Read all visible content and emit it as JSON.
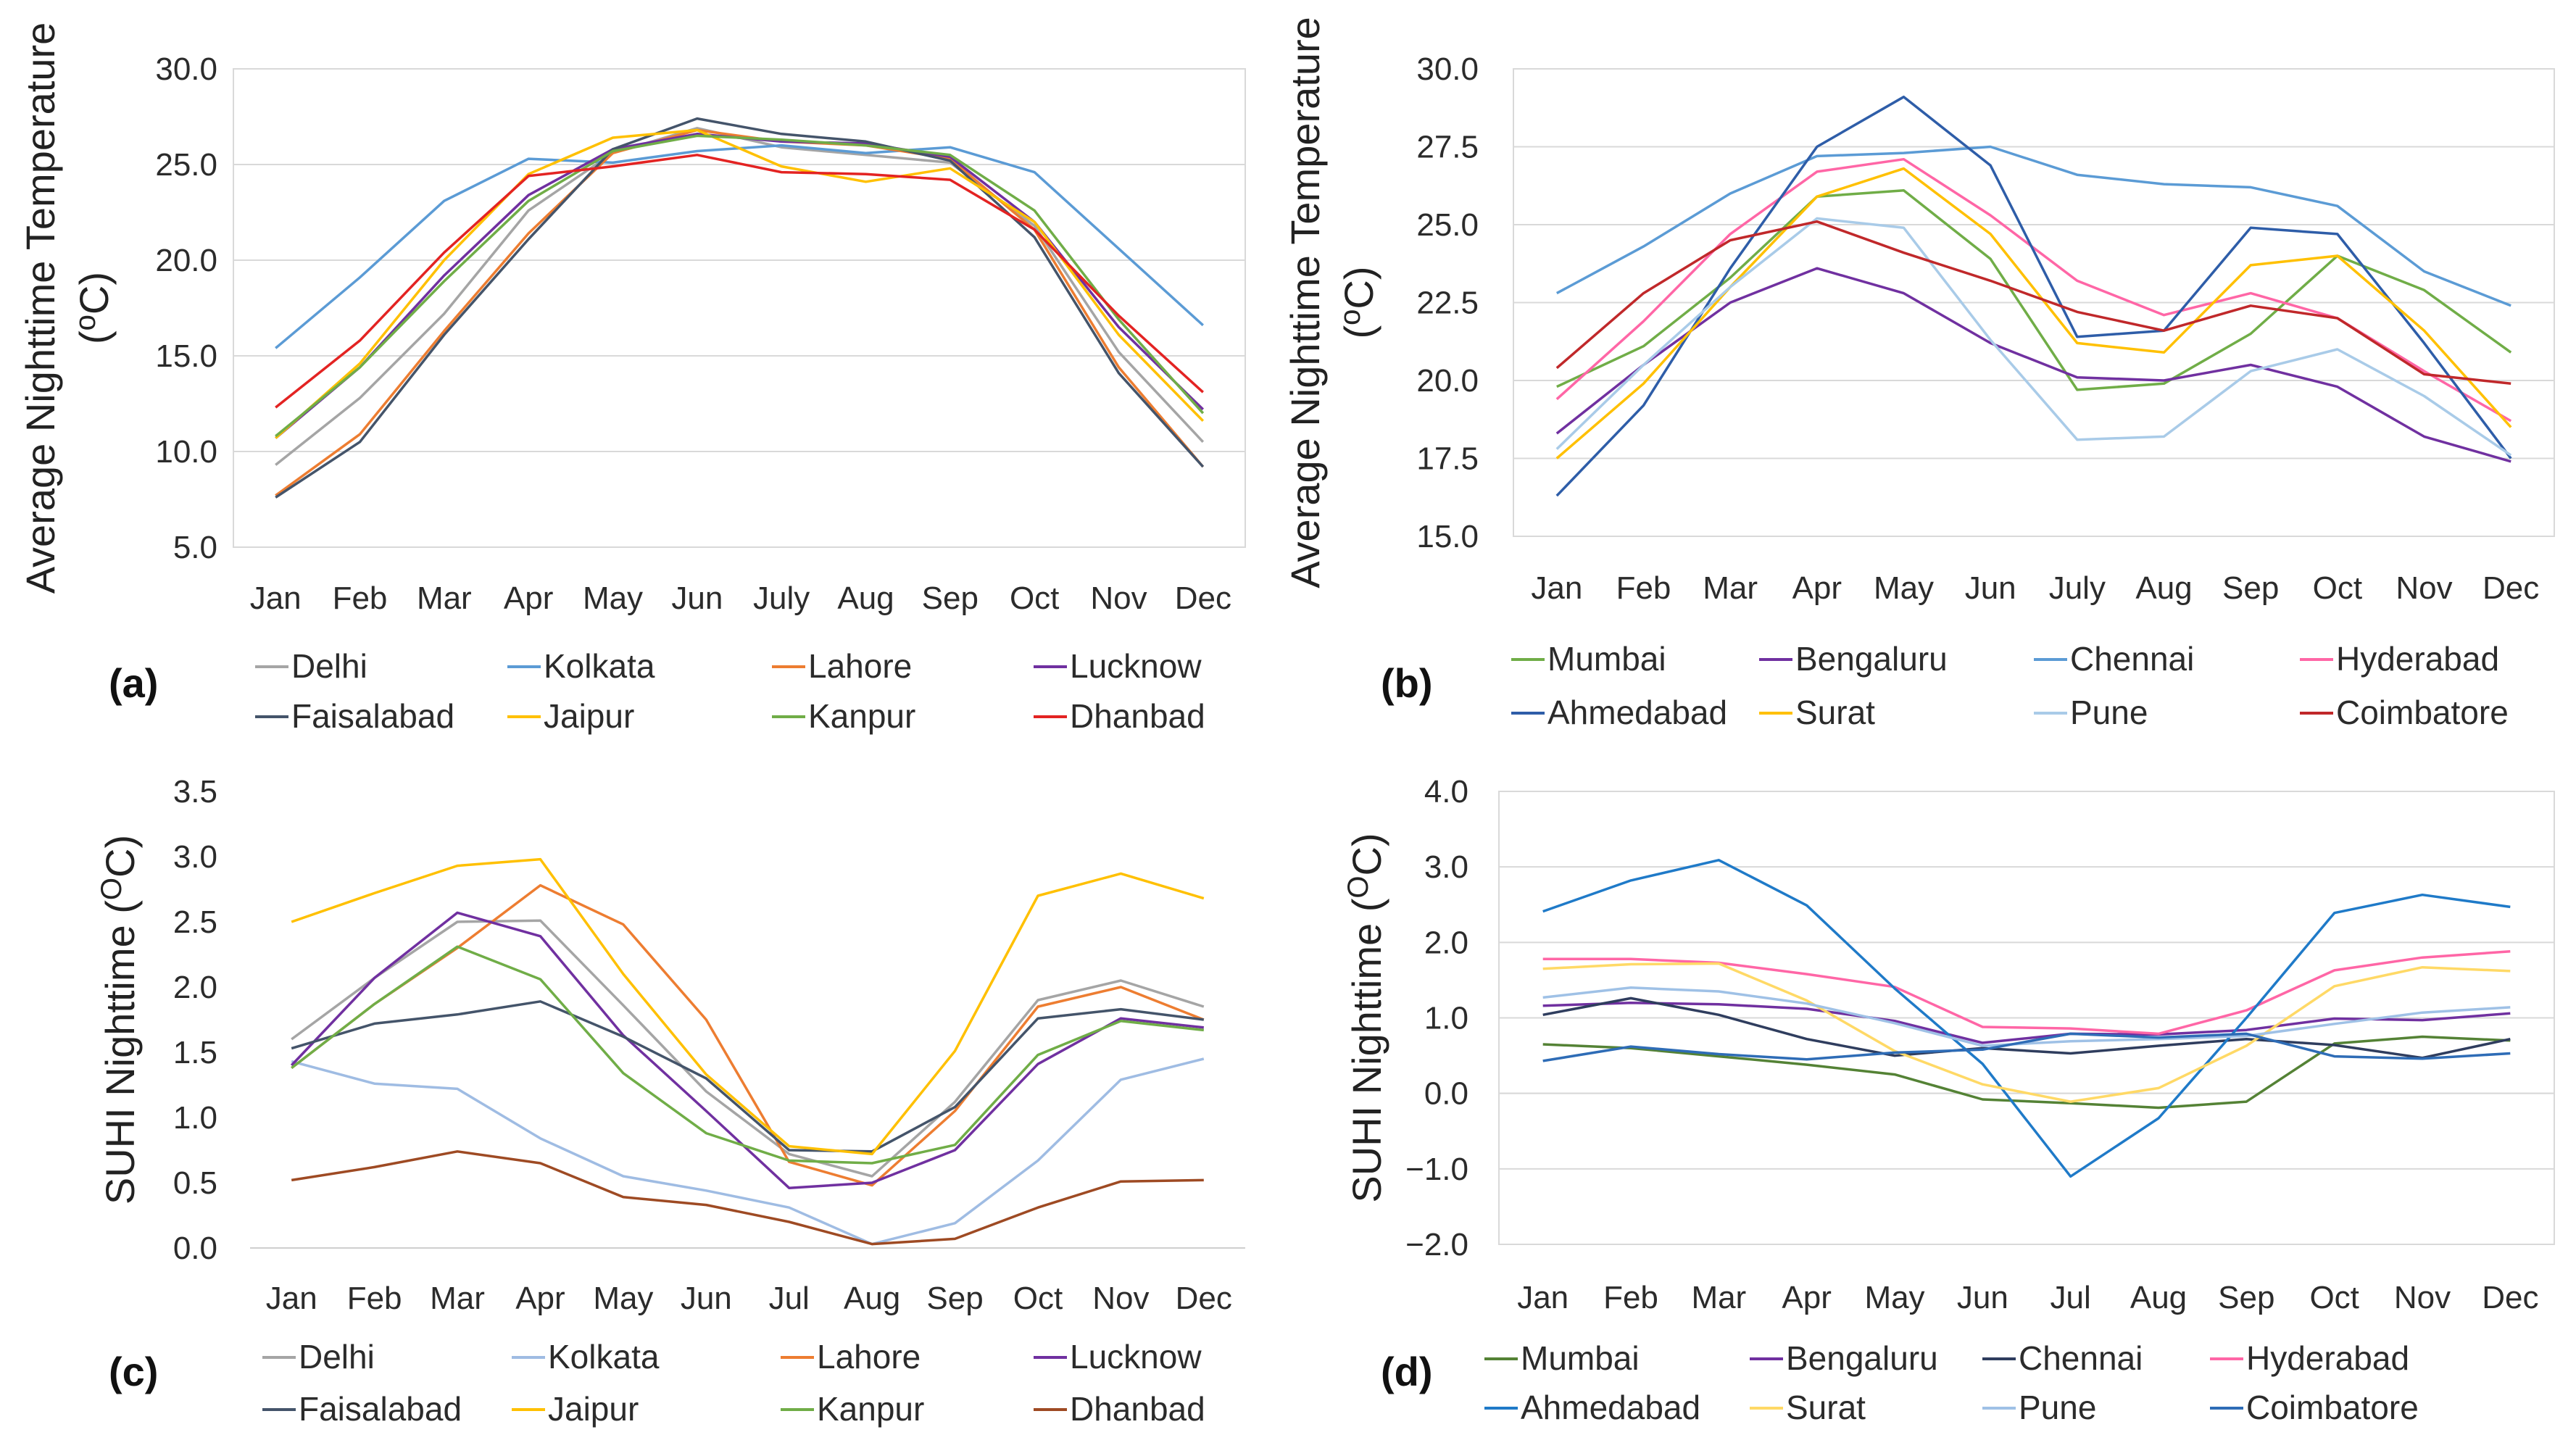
{
  "chart_data": [
    {
      "id": "a",
      "panel_label": "(a)",
      "type": "line",
      "ylabel_pre": "Average Nighttime Temperature",
      "ylabel_unit_open": "(",
      "ylabel_unit_sup": "o",
      "ylabel_unit_rest": "C)",
      "ylim": [
        5.0,
        30.0
      ],
      "ystep": 5.0,
      "ydecimals": 1,
      "grid": true,
      "categories": [
        "Jan",
        "Feb",
        "Mar",
        "Apr",
        "May",
        "Jun",
        "July",
        "Aug",
        "Sep",
        "Oct",
        "Nov",
        "Dec"
      ],
      "series": [
        {
          "name": "Delhi",
          "color": "#a5a5a5",
          "values": [
            9.3,
            12.8,
            17.2,
            22.6,
            25.6,
            26.9,
            25.9,
            25.5,
            25.1,
            21.8,
            15.2,
            10.5
          ]
        },
        {
          "name": "Kolkata",
          "color": "#5b9bd5",
          "values": [
            15.4,
            19.1,
            23.1,
            25.3,
            25.1,
            25.7,
            26.0,
            25.6,
            25.9,
            24.6,
            20.6,
            16.6
          ]
        },
        {
          "name": "Lahore",
          "color": "#ed7d31",
          "values": [
            7.7,
            10.9,
            16.3,
            21.4,
            25.6,
            26.8,
            26.2,
            26.0,
            25.3,
            21.6,
            14.4,
            9.2
          ]
        },
        {
          "name": "Lucknow",
          "color": "#7030a0",
          "values": [
            10.7,
            14.4,
            19.2,
            23.4,
            25.8,
            26.6,
            26.2,
            26.1,
            25.4,
            22.0,
            16.5,
            12.2
          ]
        },
        {
          "name": "Faisalabad",
          "color": "#44546a",
          "values": [
            7.6,
            10.5,
            16.1,
            21.1,
            25.8,
            27.4,
            26.6,
            26.2,
            25.2,
            21.2,
            14.1,
            9.2
          ]
        },
        {
          "name": "Jaipur",
          "color": "#ffc000",
          "values": [
            10.7,
            14.6,
            20.0,
            24.5,
            26.4,
            26.8,
            24.9,
            24.1,
            24.8,
            22.0,
            16.1,
            11.6
          ]
        },
        {
          "name": "Kanpur",
          "color": "#70ad47",
          "values": [
            10.8,
            14.4,
            18.9,
            23.1,
            25.7,
            26.5,
            26.3,
            26.0,
            25.5,
            22.6,
            16.9,
            12.0
          ]
        },
        {
          "name": "Dhanbad",
          "color": "#e32322",
          "values": [
            12.3,
            15.8,
            20.4,
            24.4,
            24.9,
            25.5,
            24.6,
            24.5,
            24.2,
            21.6,
            17.1,
            13.1
          ]
        }
      ]
    },
    {
      "id": "b",
      "panel_label": "(b)",
      "type": "line",
      "ylabel_pre": "Average Nighttime Temperature",
      "ylabel_unit_open": "(",
      "ylabel_unit_sup": "o",
      "ylabel_unit_rest": "C)",
      "ylim": [
        15.0,
        30.0
      ],
      "ystep": 2.5,
      "ydecimals": 1,
      "grid": true,
      "categories": [
        "Jan",
        "Feb",
        "Mar",
        "Apr",
        "May",
        "Jun",
        "July",
        "Aug",
        "Sep",
        "Oct",
        "Nov",
        "Dec"
      ],
      "series": [
        {
          "name": "Mumbai",
          "color": "#70ad47",
          "values": [
            19.8,
            21.1,
            23.3,
            25.9,
            26.1,
            23.9,
            19.7,
            19.9,
            21.5,
            24.0,
            22.9,
            20.9
          ]
        },
        {
          "name": "Bengaluru",
          "color": "#7030a0",
          "values": [
            18.3,
            20.5,
            22.5,
            23.6,
            22.8,
            21.2,
            20.1,
            20.0,
            20.5,
            19.8,
            18.2,
            17.4
          ]
        },
        {
          "name": "Chennai",
          "color": "#5b9bd5",
          "values": [
            22.8,
            24.3,
            26.0,
            27.2,
            27.3,
            27.5,
            26.6,
            26.3,
            26.2,
            25.6,
            23.5,
            22.4
          ]
        },
        {
          "name": "Hyderabad",
          "color": "#ff66a6",
          "values": [
            19.4,
            21.9,
            24.7,
            26.7,
            27.1,
            25.3,
            23.2,
            22.1,
            22.8,
            22.0,
            20.3,
            18.7
          ]
        },
        {
          "name": "Ahmedabad",
          "color": "#2e5da8",
          "values": [
            16.3,
            19.2,
            23.6,
            27.5,
            29.1,
            26.9,
            21.4,
            21.6,
            24.9,
            24.7,
            21.2,
            17.5
          ]
        },
        {
          "name": "Surat",
          "color": "#ffc000",
          "values": [
            17.5,
            19.9,
            23.0,
            25.9,
            26.8,
            24.7,
            21.2,
            20.9,
            23.7,
            24.0,
            21.6,
            18.5
          ]
        },
        {
          "name": "Pune",
          "color": "#a9cbe8",
          "values": [
            17.8,
            20.5,
            23.0,
            25.2,
            24.9,
            21.3,
            18.1,
            18.2,
            20.3,
            21.0,
            19.5,
            17.6
          ]
        },
        {
          "name": "Coimbatore",
          "color": "#c0282a",
          "values": [
            20.4,
            22.8,
            24.5,
            25.1,
            24.1,
            23.2,
            22.2,
            21.6,
            22.4,
            22.0,
            20.2,
            19.9
          ]
        }
      ]
    },
    {
      "id": "c",
      "panel_label": "(c)",
      "type": "line",
      "ylabel_pre": "SUHI Nighttime",
      "ylabel_unit_open": "(",
      "ylabel_unit_sup": "O",
      "ylabel_unit_rest": "C)",
      "ylim": [
        0.0,
        3.5
      ],
      "ystep": 0.5,
      "ydecimals": 1,
      "grid": false,
      "categories": [
        "Jan",
        "Feb",
        "Mar",
        "Apr",
        "May",
        "Jun",
        "Jul",
        "Aug",
        "Sep",
        "Oct",
        "Nov",
        "Dec"
      ],
      "series": [
        {
          "name": "Delhi",
          "color": "#a5a5a5",
          "values": [
            1.6,
            2.07,
            2.5,
            2.51,
            1.86,
            1.2,
            0.72,
            0.55,
            1.12,
            1.9,
            2.05,
            1.85
          ]
        },
        {
          "name": "Kolkata",
          "color": "#9fbce3",
          "values": [
            1.43,
            1.26,
            1.22,
            0.84,
            0.55,
            0.44,
            0.31,
            0.03,
            0.19,
            0.67,
            1.29,
            1.45
          ]
        },
        {
          "name": "Lahore",
          "color": "#ed7d31",
          "values": [
            1.38,
            1.87,
            2.3,
            2.78,
            2.48,
            1.75,
            0.66,
            0.48,
            1.05,
            1.85,
            2.0,
            1.75
          ]
        },
        {
          "name": "Lucknow",
          "color": "#7030a0",
          "values": [
            1.4,
            2.07,
            2.57,
            2.39,
            1.63,
            1.05,
            0.46,
            0.5,
            0.75,
            1.41,
            1.76,
            1.69
          ]
        },
        {
          "name": "Faisalabad",
          "color": "#44546a",
          "values": [
            1.53,
            1.72,
            1.79,
            1.89,
            1.62,
            1.3,
            0.75,
            0.74,
            1.08,
            1.76,
            1.83,
            1.75
          ]
        },
        {
          "name": "Jaipur",
          "color": "#ffc000",
          "values": [
            2.5,
            2.72,
            2.93,
            2.98,
            2.1,
            1.33,
            0.78,
            0.72,
            1.51,
            2.7,
            2.87,
            2.68
          ]
        },
        {
          "name": "Kanpur",
          "color": "#70ad47",
          "values": [
            1.38,
            1.87,
            2.31,
            2.06,
            1.34,
            0.88,
            0.67,
            0.65,
            0.79,
            1.48,
            1.74,
            1.67
          ]
        },
        {
          "name": "Dhanbad",
          "color": "#9e4a23",
          "values": [
            0.52,
            0.62,
            0.74,
            0.65,
            0.39,
            0.33,
            0.2,
            0.03,
            0.07,
            0.31,
            0.51,
            0.52
          ]
        }
      ]
    },
    {
      "id": "d",
      "panel_label": "(d)",
      "type": "line",
      "ylabel_pre": "SUHI Nighttime",
      "ylabel_unit_open": "(",
      "ylabel_unit_sup": "O",
      "ylabel_unit_rest": "C)",
      "ylim": [
        -2.0,
        4.0
      ],
      "ystep": 1.0,
      "ydecimals": 1,
      "grid": true,
      "categories": [
        "Jan",
        "Feb",
        "Mar",
        "Apr",
        "May",
        "Jun",
        "Jul",
        "Aug",
        "Sep",
        "Oct",
        "Nov",
        "Dec"
      ],
      "series": [
        {
          "name": "Mumbai",
          "color": "#548235",
          "values": [
            0.65,
            0.6,
            0.49,
            0.38,
            0.25,
            -0.08,
            -0.13,
            -0.19,
            -0.11,
            0.66,
            0.75,
            0.7
          ]
        },
        {
          "name": "Bengaluru",
          "color": "#7030a0",
          "values": [
            1.16,
            1.2,
            1.18,
            1.12,
            0.96,
            0.67,
            0.79,
            0.78,
            0.84,
            0.99,
            0.97,
            1.06
          ]
        },
        {
          "name": "Chennai",
          "color": "#2f3d5e",
          "values": [
            1.04,
            1.26,
            1.04,
            0.72,
            0.5,
            0.6,
            0.53,
            0.63,
            0.72,
            0.64,
            0.47,
            0.72
          ]
        },
        {
          "name": "Hyderabad",
          "color": "#ff66a6",
          "values": [
            1.78,
            1.78,
            1.73,
            1.58,
            1.41,
            0.88,
            0.86,
            0.79,
            1.1,
            1.63,
            1.8,
            1.88
          ]
        },
        {
          "name": "Ahmedabad",
          "color": "#1f7ac8",
          "values": [
            2.41,
            2.82,
            3.09,
            2.49,
            1.39,
            0.39,
            -1.1,
            -0.33,
            1.0,
            2.39,
            2.63,
            2.47
          ]
        },
        {
          "name": "Surat",
          "color": "#ffd966",
          "values": [
            1.65,
            1.71,
            1.72,
            1.23,
            0.56,
            0.12,
            -0.11,
            0.07,
            0.63,
            1.42,
            1.67,
            1.62
          ]
        },
        {
          "name": "Pune",
          "color": "#9fc1e6",
          "values": [
            1.27,
            1.4,
            1.35,
            1.19,
            0.93,
            0.63,
            0.69,
            0.72,
            0.76,
            0.92,
            1.07,
            1.14
          ]
        },
        {
          "name": "Coimbatore",
          "color": "#2e6cb6",
          "values": [
            0.43,
            0.62,
            0.52,
            0.45,
            0.54,
            0.58,
            0.79,
            0.74,
            0.79,
            0.49,
            0.46,
            0.53
          ]
        }
      ]
    }
  ]
}
